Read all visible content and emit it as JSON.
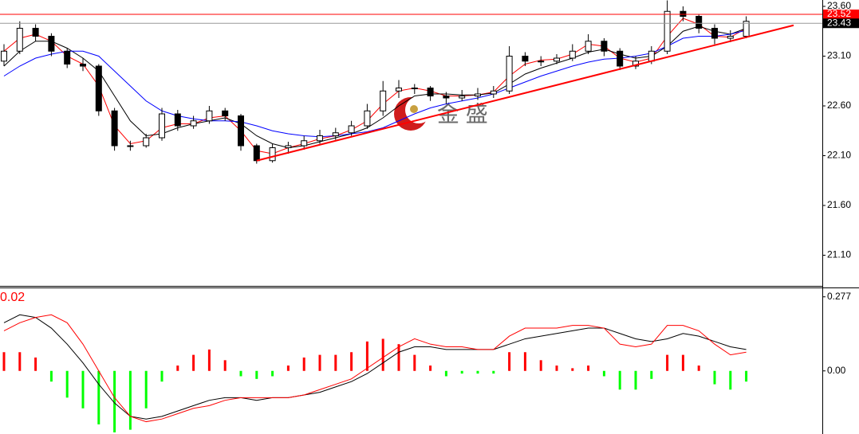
{
  "chart_data": [
    {
      "type": "candlestick",
      "candles": [
        [
          23.05,
          23.22,
          23.0,
          23.15
        ],
        [
          23.15,
          23.45,
          23.12,
          23.38
        ],
        [
          23.38,
          23.42,
          23.25,
          23.3
        ],
        [
          23.3,
          23.33,
          23.1,
          23.15
        ],
        [
          23.15,
          23.18,
          22.98,
          23.02
        ],
        [
          23.02,
          23.08,
          22.95,
          23.0
        ],
        [
          23.0,
          23.02,
          22.5,
          22.55
        ],
        [
          22.55,
          22.58,
          22.15,
          22.2
        ],
        [
          22.2,
          22.25,
          22.15,
          22.2
        ],
        [
          22.2,
          22.32,
          22.18,
          22.28
        ],
        [
          22.28,
          22.58,
          22.25,
          22.52
        ],
        [
          22.52,
          22.56,
          22.35,
          22.4
        ],
        [
          22.4,
          22.5,
          22.37,
          22.45
        ],
        [
          22.45,
          22.6,
          22.42,
          22.55
        ],
        [
          22.55,
          22.58,
          22.45,
          22.5
        ],
        [
          22.5,
          22.52,
          22.15,
          22.2
        ],
        [
          22.2,
          22.22,
          22.02,
          22.05
        ],
        [
          22.05,
          22.22,
          22.03,
          22.18
        ],
        [
          22.18,
          22.24,
          22.12,
          22.2
        ],
        [
          22.2,
          22.3,
          22.16,
          22.25
        ],
        [
          22.25,
          22.36,
          22.22,
          22.3
        ],
        [
          22.3,
          22.38,
          22.26,
          22.33
        ],
        [
          22.33,
          22.45,
          22.3,
          22.4
        ],
        [
          22.4,
          22.62,
          22.37,
          22.55
        ],
        [
          22.55,
          22.85,
          22.5,
          22.75
        ],
        [
          22.75,
          22.86,
          22.68,
          22.78
        ],
        [
          22.78,
          22.82,
          22.72,
          22.78
        ],
        [
          22.78,
          22.8,
          22.65,
          22.7
        ],
        [
          22.7,
          22.74,
          22.62,
          22.68
        ],
        [
          22.68,
          22.76,
          22.65,
          22.7
        ],
        [
          22.7,
          22.78,
          22.66,
          22.72
        ],
        [
          22.72,
          22.8,
          22.68,
          22.75
        ],
        [
          22.75,
          23.2,
          22.72,
          23.1
        ],
        [
          23.1,
          23.14,
          23.0,
          23.05
        ],
        [
          23.05,
          23.1,
          23.0,
          23.05
        ],
        [
          23.05,
          23.12,
          23.02,
          23.08
        ],
        [
          23.08,
          23.22,
          23.05,
          23.15
        ],
        [
          23.15,
          23.32,
          23.12,
          23.25
        ],
        [
          23.25,
          23.28,
          23.1,
          23.15
        ],
        [
          23.15,
          23.18,
          22.96,
          23.0
        ],
        [
          23.0,
          23.1,
          22.97,
          23.05
        ],
        [
          23.05,
          23.2,
          23.02,
          23.15
        ],
        [
          23.15,
          23.66,
          23.12,
          23.55
        ],
        [
          23.55,
          23.6,
          23.45,
          23.5
        ],
        [
          23.5,
          23.52,
          23.33,
          23.38
        ],
        [
          23.38,
          23.42,
          23.22,
          23.28
        ],
        [
          23.28,
          23.36,
          23.24,
          23.3
        ],
        [
          23.3,
          23.5,
          23.28,
          23.45
        ]
      ],
      "lines": [
        {
          "color": "#ff0000",
          "values": [
            23.15,
            23.28,
            23.32,
            23.25,
            23.1,
            23.02,
            22.8,
            22.4,
            22.22,
            22.25,
            22.38,
            22.42,
            22.42,
            22.48,
            22.5,
            22.35,
            22.15,
            22.12,
            22.18,
            22.22,
            22.27,
            22.3,
            22.36,
            22.45,
            22.62,
            22.75,
            22.78,
            22.75,
            22.7,
            22.7,
            22.71,
            22.74,
            22.9,
            23.02,
            23.06,
            23.07,
            23.12,
            23.22,
            23.2,
            23.08,
            23.04,
            23.08,
            23.3,
            23.48,
            23.42,
            23.3,
            23.29,
            23.38
          ]
        },
        {
          "color": "#000000",
          "values": [
            23.0,
            23.15,
            23.25,
            23.25,
            23.18,
            23.08,
            22.95,
            22.7,
            22.45,
            22.3,
            22.32,
            22.38,
            22.42,
            22.45,
            22.48,
            22.42,
            22.3,
            22.22,
            22.18,
            22.2,
            22.24,
            22.28,
            22.32,
            22.38,
            22.48,
            22.6,
            22.7,
            22.72,
            22.72,
            22.71,
            22.71,
            22.73,
            22.82,
            22.92,
            22.98,
            23.03,
            23.08,
            23.14,
            23.17,
            23.12,
            23.08,
            23.1,
            23.2,
            23.35,
            23.4,
            23.35,
            23.32,
            23.38
          ]
        },
        {
          "color": "#0000ff",
          "values": [
            22.9,
            23.0,
            23.08,
            23.12,
            23.15,
            23.15,
            23.1,
            22.95,
            22.8,
            22.65,
            22.55,
            22.5,
            22.47,
            22.45,
            22.45,
            22.44,
            22.4,
            22.35,
            22.32,
            22.3,
            22.29,
            22.3,
            22.32,
            22.34,
            22.38,
            22.45,
            22.52,
            22.58,
            22.62,
            22.65,
            22.68,
            22.72,
            22.78,
            22.84,
            22.9,
            22.95,
            23.0,
            23.04,
            23.07,
            23.08,
            23.1,
            23.13,
            23.2,
            23.28,
            23.3,
            23.3,
            23.32,
            23.36
          ]
        }
      ],
      "trendline": [
        {
          "index": 16,
          "price": 22.05
        },
        {
          "index": 50,
          "price": 23.41
        }
      ],
      "trend_color": "#ff0000",
      "price_lines": [
        {
          "value": 23.52,
          "color": "#ff0000"
        },
        {
          "value": 23.43,
          "color": "#000000"
        }
      ],
      "watermark": "金 盛",
      "ylim": [
        20.8,
        23.664
      ],
      "yticks": [
        {
          "value": 23.6,
          "label": "23.60"
        },
        {
          "value": 23.1,
          "label": "23.10"
        },
        {
          "value": 22.6,
          "label": "22.60"
        },
        {
          "value": 22.1,
          "label": "22.10"
        },
        {
          "value": 21.6,
          "label": "21.60"
        },
        {
          "value": 21.1,
          "label": "21.10"
        }
      ]
    },
    {
      "type": "macd",
      "label": "0.02",
      "histogram": [
        0.07,
        0.07,
        0.05,
        -0.04,
        -0.1,
        -0.14,
        -0.2,
        -0.23,
        -0.22,
        -0.14,
        -0.04,
        0.02,
        0.06,
        0.08,
        0.04,
        -0.02,
        -0.03,
        -0.02,
        0.02,
        0.05,
        0.06,
        0.06,
        0.07,
        0.11,
        0.12,
        0.1,
        0.06,
        0.02,
        -0.02,
        -0.01,
        -0.01,
        -0.01,
        0.07,
        0.07,
        0.04,
        0.02,
        0.01,
        0.02,
        -0.02,
        -0.07,
        -0.07,
        -0.03,
        0.06,
        0.06,
        0.02,
        -0.05,
        -0.07,
        -0.04
      ],
      "up_color": "#ff0000",
      "down_color": "#00ff00",
      "lines": [
        {
          "color": "#000000",
          "values": [
            0.18,
            0.21,
            0.2,
            0.16,
            0.1,
            0.03,
            -0.05,
            -0.12,
            -0.17,
            -0.18,
            -0.17,
            -0.15,
            -0.13,
            -0.11,
            -0.1,
            -0.1,
            -0.11,
            -0.1,
            -0.1,
            -0.09,
            -0.08,
            -0.06,
            -0.04,
            -0.01,
            0.03,
            0.07,
            0.09,
            0.09,
            0.08,
            0.08,
            0.08,
            0.08,
            0.1,
            0.12,
            0.13,
            0.14,
            0.15,
            0.16,
            0.16,
            0.14,
            0.12,
            0.11,
            0.12,
            0.14,
            0.13,
            0.11,
            0.09,
            0.08
          ]
        },
        {
          "color": "#ff0000",
          "values": [
            0.15,
            0.18,
            0.2,
            0.21,
            0.18,
            0.1,
            0.0,
            -0.1,
            -0.17,
            -0.19,
            -0.18,
            -0.16,
            -0.14,
            -0.13,
            -0.11,
            -0.1,
            -0.1,
            -0.1,
            -0.1,
            -0.09,
            -0.07,
            -0.05,
            -0.03,
            0.01,
            0.05,
            0.09,
            0.12,
            0.1,
            0.09,
            0.09,
            0.08,
            0.08,
            0.13,
            0.16,
            0.16,
            0.16,
            0.17,
            0.17,
            0.16,
            0.1,
            0.09,
            0.1,
            0.17,
            0.17,
            0.15,
            0.1,
            0.06,
            0.07
          ]
        }
      ],
      "ylim": [
        -0.236,
        0.309
      ],
      "yticks": [
        0.277,
        {
          "value": 0,
          "label": "0.00"
        }
      ]
    }
  ]
}
